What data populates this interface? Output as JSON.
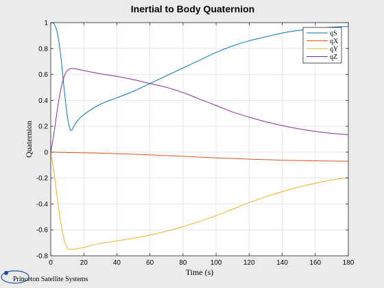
{
  "chart_data": {
    "type": "line",
    "title": "Inertial to Body Quaternion",
    "xlabel": "Time (s)",
    "ylabel": "Quaternion",
    "xlim": [
      0,
      180
    ],
    "ylim": [
      -0.8,
      1
    ],
    "xticks": [
      0,
      20,
      40,
      60,
      80,
      100,
      120,
      140,
      160,
      180
    ],
    "yticks": [
      -0.8,
      -0.6,
      -0.4,
      -0.2,
      0,
      0.2,
      0.4,
      0.6,
      0.8,
      1
    ],
    "grid": true,
    "legend_position": "top-right",
    "x": [
      0,
      2,
      4,
      6,
      8,
      10,
      12,
      14,
      16,
      20,
      30,
      40,
      50,
      60,
      70,
      80,
      90,
      100,
      110,
      120,
      130,
      140,
      150,
      160,
      170,
      180
    ],
    "series": [
      {
        "name": "qS",
        "color": "#0072bd",
        "values": [
          1.0,
          0.99,
          0.92,
          0.75,
          0.5,
          0.28,
          0.17,
          0.2,
          0.24,
          0.29,
          0.37,
          0.42,
          0.47,
          0.53,
          0.59,
          0.65,
          0.71,
          0.77,
          0.82,
          0.86,
          0.89,
          0.92,
          0.94,
          0.955,
          0.965,
          0.97
        ]
      },
      {
        "name": "qX",
        "color": "#d95319",
        "values": [
          0,
          0,
          -0.001,
          -0.002,
          -0.002,
          -0.003,
          -0.003,
          -0.004,
          -0.004,
          -0.005,
          -0.008,
          -0.012,
          -0.016,
          -0.021,
          -0.027,
          -0.032,
          -0.038,
          -0.044,
          -0.049,
          -0.054,
          -0.058,
          -0.062,
          -0.065,
          -0.067,
          -0.069,
          -0.07
        ]
      },
      {
        "name": "qY",
        "color": "#edb120",
        "values": [
          0,
          -0.16,
          -0.36,
          -0.54,
          -0.67,
          -0.74,
          -0.75,
          -0.75,
          -0.745,
          -0.735,
          -0.705,
          -0.685,
          -0.665,
          -0.64,
          -0.61,
          -0.575,
          -0.535,
          -0.49,
          -0.44,
          -0.39,
          -0.345,
          -0.305,
          -0.27,
          -0.24,
          -0.215,
          -0.195
        ]
      },
      {
        "name": "qZ",
        "color": "#7e2f8e",
        "values": [
          0,
          0.15,
          0.33,
          0.48,
          0.58,
          0.63,
          0.645,
          0.645,
          0.64,
          0.63,
          0.605,
          0.585,
          0.56,
          0.53,
          0.5,
          0.46,
          0.41,
          0.36,
          0.31,
          0.27,
          0.235,
          0.205,
          0.18,
          0.16,
          0.145,
          0.135
        ]
      }
    ]
  },
  "footer": {
    "brand": "Princeton Satellite Systems"
  }
}
